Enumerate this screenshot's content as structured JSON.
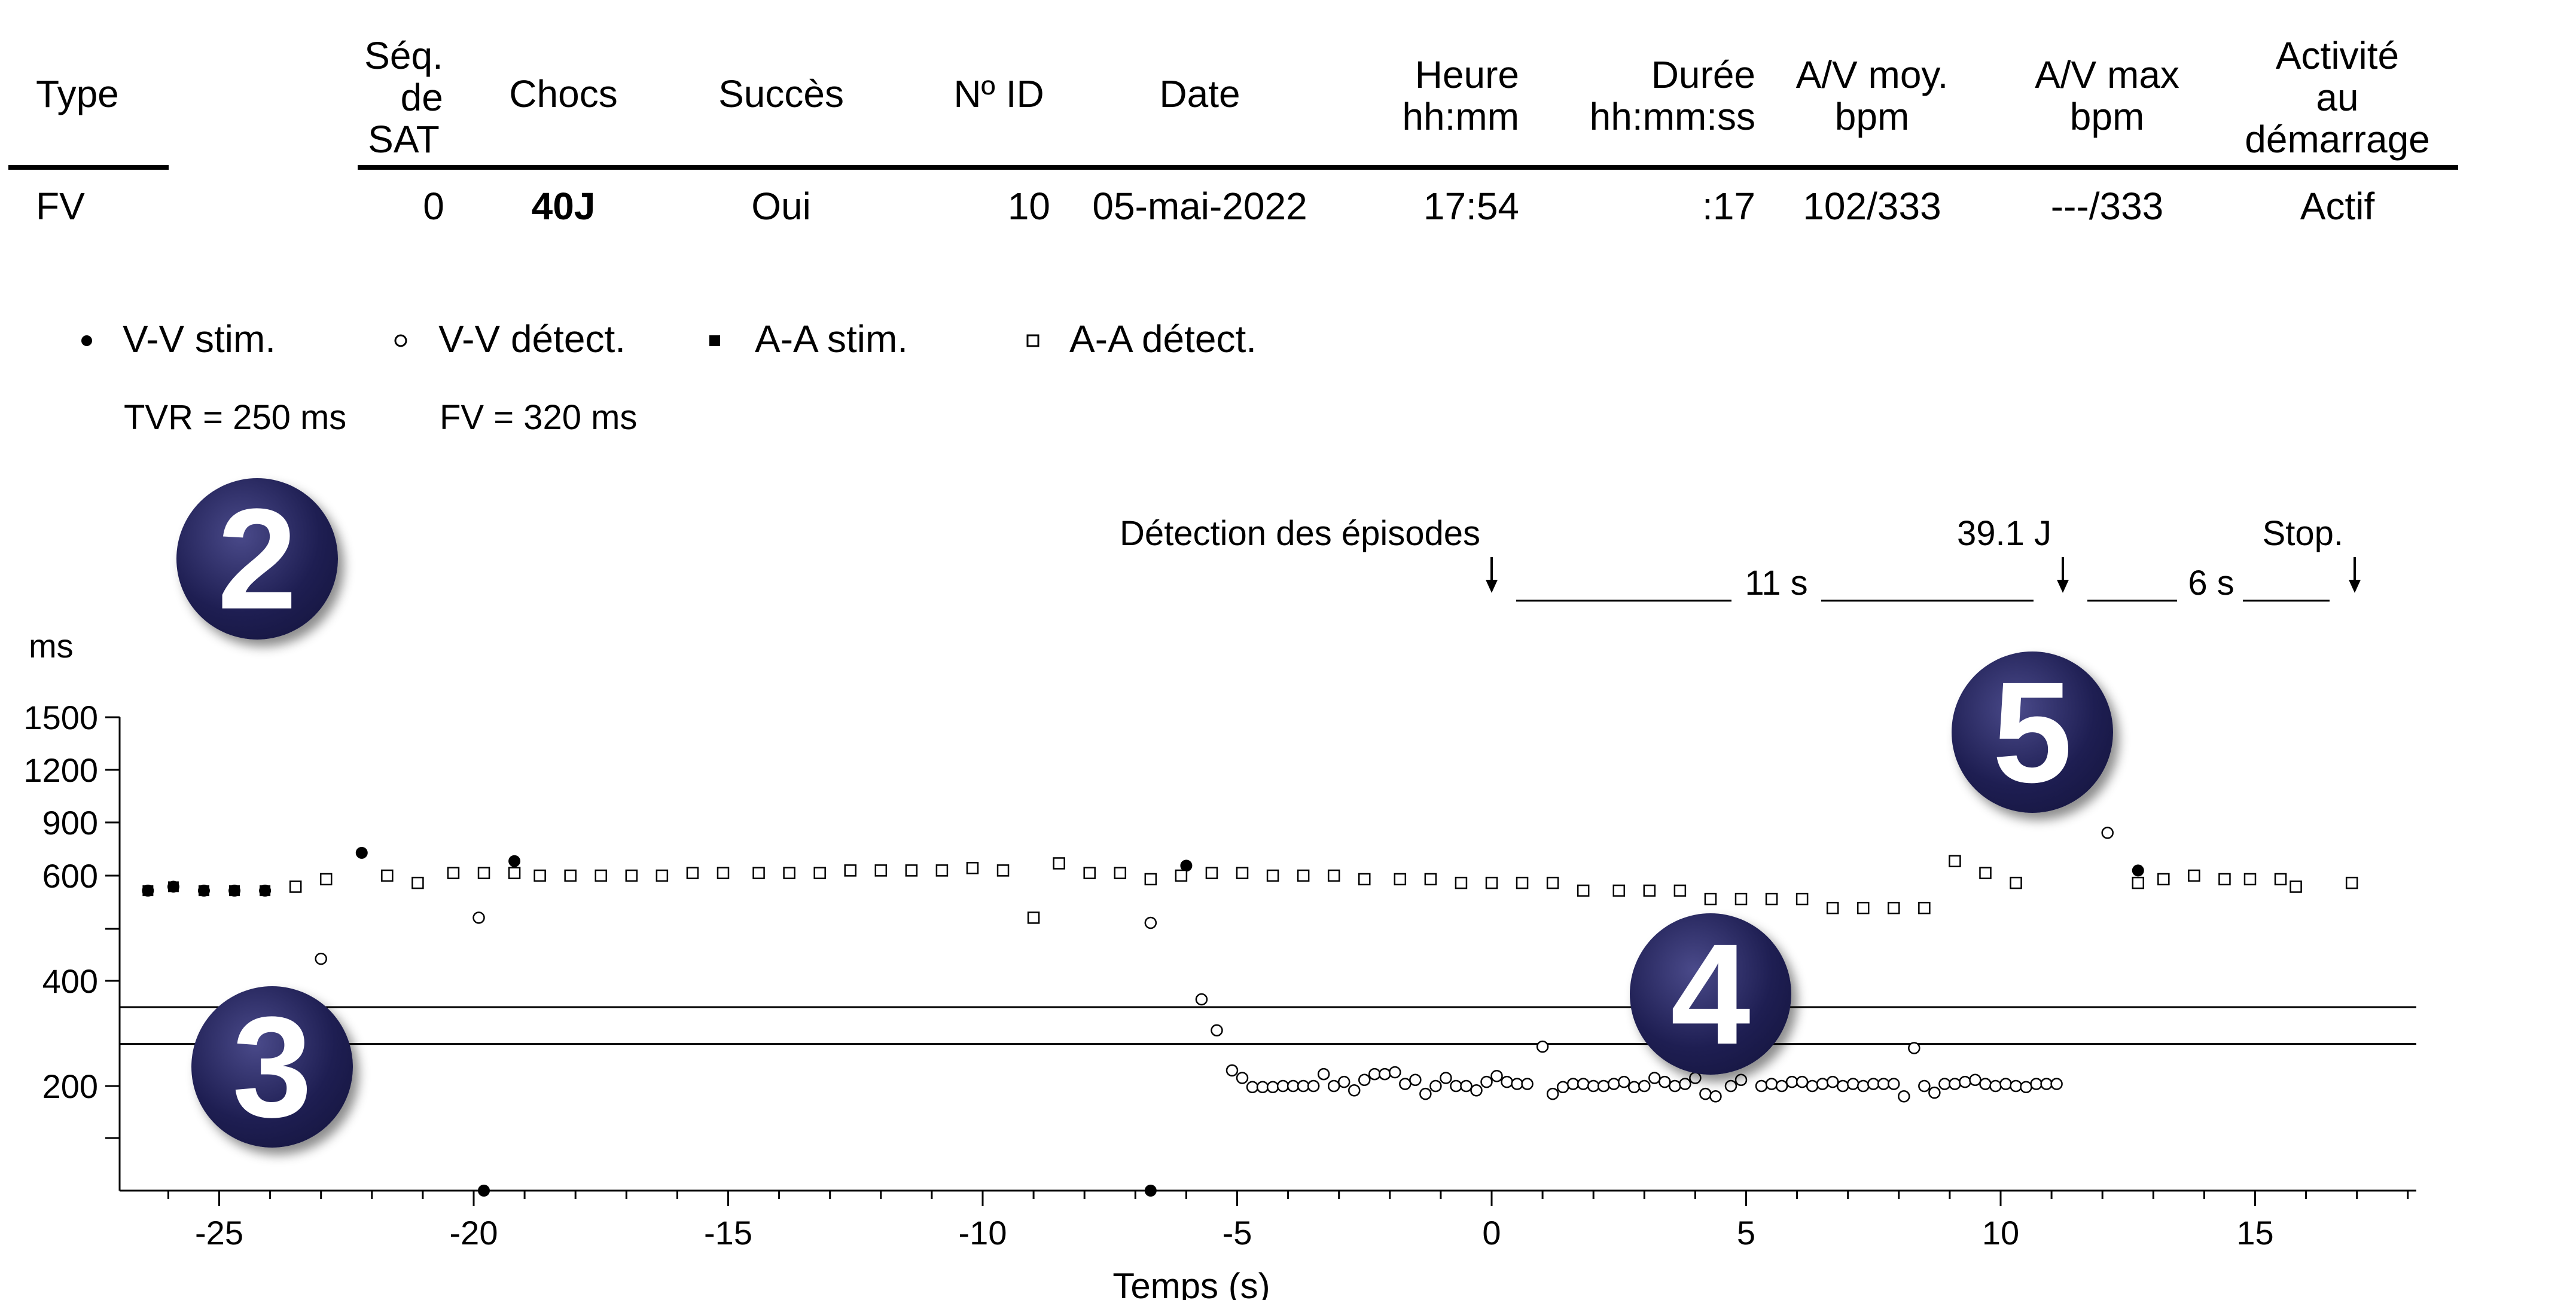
{
  "table": {
    "headers": {
      "type": "Type",
      "seq_line1": "Séq.",
      "seq_line2": "de",
      "seq_line3": "SAT",
      "chocs": "Chocs",
      "succes": "Succès",
      "id": "Nº ID",
      "date": "Date",
      "heure_line1": "Heure",
      "heure_line2": "hh:mm",
      "duree_line1": "Durée",
      "duree_line2": "hh:mm:ss",
      "av_moy_line1": "A/V moy.",
      "av_moy_line2": "bpm",
      "av_max_line1": "A/V max",
      "av_max_line2": "bpm",
      "activite_line1": "Activité",
      "activite_line2": "au",
      "activite_line3": "démarrage"
    },
    "row": {
      "type": "FV",
      "seq": "0",
      "chocs": "40J",
      "succes": "Oui",
      "id": "10",
      "date": "05-mai-2022",
      "heure": "17:54",
      "duree": ":17",
      "av_moy": "102/333",
      "av_max": "---/333",
      "activite": "Actif"
    }
  },
  "legend": {
    "vv_stim": "V-V stim.",
    "vv_detect": "V-V détect.",
    "aa_stim": "A-A stim.",
    "aa_detect": "A-A détect.",
    "tvr": "TVR = 250 ms",
    "fv": "FV = 320 ms"
  },
  "badges": {
    "b2": "2",
    "b3": "3",
    "b4": "4",
    "b5": "5"
  },
  "annotations": {
    "detection": "Détection des épisodes",
    "shock": "39.1 J",
    "stop": "Stop.",
    "interval1": "11 s",
    "interval2": "6 s"
  },
  "chart_data": {
    "type": "scatter",
    "xlabel": "Temps (s)",
    "ylabel": "ms",
    "xlim": [
      -27,
      18
    ],
    "x_ticks": [
      -25,
      -20,
      -15,
      -10,
      -5,
      0,
      5,
      10,
      15
    ],
    "y_ticks": [
      200,
      400,
      600,
      900,
      1200,
      1500
    ],
    "y_scale": "reciprocal",
    "thresholds": [
      {
        "name": "TVR",
        "value": 250
      },
      {
        "name": "FV",
        "value": 320
      }
    ],
    "series": [
      {
        "name": "V-V stim.",
        "marker": "filled-circle",
        "points": [
          [
            -26.4,
            560
          ],
          [
            -22.2,
            700
          ],
          [
            -19.2,
            660
          ],
          [
            -6.0,
            640
          ],
          [
            12.7,
            620
          ],
          [
            15.8,
            570
          ],
          [
            16.9,
            580
          ],
          [
            -19.8,
            100
          ],
          [
            -6.7,
            100
          ],
          [
            -25.9,
            570
          ],
          [
            -25.3,
            560
          ],
          [
            -24.7,
            560
          ],
          [
            -24.1,
            560
          ],
          [
            -23.5,
            570
          ],
          [
            -21.7,
            600
          ],
          [
            -21.1,
            580
          ],
          [
            -20.4,
            610
          ],
          [
            -18.7,
            600
          ],
          [
            -18.1,
            600
          ],
          [
            -17.5,
            600
          ],
          [
            -16.9,
            600
          ],
          [
            -16.3,
            600
          ],
          [
            -15.7,
            610
          ],
          [
            -15.1,
            610
          ],
          [
            -14.4,
            610
          ],
          [
            -13.8,
            610
          ],
          [
            -13.2,
            610
          ],
          [
            -12.6,
            620
          ],
          [
            -12.0,
            620
          ],
          [
            -11.4,
            620
          ],
          [
            -10.8,
            620
          ],
          [
            -10.2,
            630
          ],
          [
            -9.6,
            620
          ],
          [
            -9.0,
            500
          ],
          [
            -8.5,
            650
          ],
          [
            -7.9,
            610
          ],
          [
            -7.3,
            610
          ],
          [
            13.2,
            590
          ],
          [
            13.8,
            600
          ],
          [
            14.4,
            590
          ],
          [
            14.9,
            590
          ],
          [
            15.5,
            590
          ]
        ]
      },
      {
        "name": "V-V détect.",
        "marker": "open-circle",
        "points": [
          [
            -23.0,
            430
          ],
          [
            -19.9,
            500
          ],
          [
            -6.7,
            490
          ],
          [
            -5.7,
            340
          ],
          [
            -5.4,
            272
          ],
          [
            -5.1,
            216
          ],
          [
            -4.9,
            208
          ],
          [
            -4.7,
            198
          ],
          [
            -4.5,
            198
          ],
          [
            -4.3,
            198
          ],
          [
            -4.1,
            200
          ],
          [
            -3.9,
            200
          ],
          [
            -3.7,
            200
          ],
          [
            -3.5,
            200
          ],
          [
            -3.3,
            212
          ],
          [
            -3.1,
            200
          ],
          [
            -2.9,
            204
          ],
          [
            -2.7,
            192
          ],
          [
            -2.5,
            206
          ],
          [
            -2.3,
            212
          ],
          [
            -2.1,
            212
          ],
          [
            -1.9,
            214
          ],
          [
            -1.7,
            202
          ],
          [
            -1.5,
            206
          ],
          [
            -1.3,
            186
          ],
          [
            -1.1,
            200
          ],
          [
            -0.9,
            208
          ],
          [
            -0.7,
            200
          ],
          [
            -0.5,
            200
          ],
          [
            -0.3,
            192
          ],
          [
            -0.1,
            204
          ],
          [
            0.1,
            210
          ],
          [
            0.3,
            204
          ],
          [
            0.5,
            202
          ],
          [
            0.7,
            202
          ],
          [
            1.0,
            246
          ],
          [
            1.2,
            186
          ],
          [
            1.4,
            198
          ],
          [
            1.6,
            202
          ],
          [
            1.8,
            202
          ],
          [
            2.0,
            200
          ],
          [
            2.2,
            200
          ],
          [
            2.4,
            202
          ],
          [
            2.6,
            204
          ],
          [
            2.8,
            198
          ],
          [
            3.0,
            200
          ],
          [
            3.2,
            208
          ],
          [
            3.4,
            204
          ],
          [
            3.6,
            200
          ],
          [
            3.8,
            202
          ],
          [
            4.0,
            208
          ],
          [
            4.2,
            186
          ],
          [
            4.4,
            182
          ],
          [
            4.7,
            200
          ],
          [
            4.9,
            206
          ],
          [
            5.3,
            200
          ],
          [
            5.5,
            202
          ],
          [
            5.7,
            200
          ],
          [
            5.9,
            204
          ],
          [
            6.1,
            204
          ],
          [
            6.3,
            200
          ],
          [
            6.5,
            202
          ],
          [
            6.7,
            204
          ],
          [
            6.9,
            200
          ],
          [
            7.1,
            202
          ],
          [
            7.3,
            200
          ],
          [
            7.5,
            202
          ],
          [
            7.7,
            202
          ],
          [
            7.9,
            202
          ],
          [
            8.1,
            182
          ],
          [
            8.3,
            244
          ],
          [
            8.5,
            200
          ],
          [
            8.7,
            188
          ],
          [
            8.9,
            202
          ],
          [
            9.1,
            202
          ],
          [
            9.3,
            204
          ],
          [
            9.5,
            206
          ],
          [
            9.7,
            202
          ],
          [
            9.9,
            200
          ],
          [
            10.1,
            202
          ],
          [
            10.3,
            200
          ],
          [
            10.5,
            198
          ],
          [
            10.7,
            202
          ],
          [
            10.9,
            202
          ],
          [
            11.1,
            202
          ],
          [
            12.1,
            820
          ]
        ]
      },
      {
        "name": "A-A stim.",
        "marker": "filled-square",
        "points": [
          [
            -26.4,
            560
          ],
          [
            -25.9,
            570
          ],
          [
            -25.3,
            560
          ],
          [
            -24.7,
            560
          ],
          [
            -24.1,
            560
          ],
          [
            -20.4,
            610
          ],
          [
            -18.7,
            600
          ],
          [
            -16.9,
            600
          ],
          [
            -13.8,
            610
          ],
          [
            -12.6,
            620
          ],
          [
            -11.4,
            620
          ],
          [
            -10.2,
            630
          ],
          [
            -9.6,
            620
          ],
          [
            -9.0,
            500
          ],
          [
            -8.5,
            650
          ],
          [
            -7.9,
            610
          ],
          [
            -7.3,
            610
          ],
          [
            13.2,
            590
          ],
          [
            15.5,
            590
          ],
          [
            15.8,
            570
          ],
          [
            16.9,
            580
          ]
        ]
      },
      {
        "name": "A-A détect.",
        "marker": "open-square",
        "points": [
          [
            -23.5,
            570
          ],
          [
            -22.9,
            590
          ],
          [
            -21.7,
            600
          ],
          [
            -21.1,
            580
          ],
          [
            -20.4,
            610
          ],
          [
            -19.8,
            610
          ],
          [
            -19.2,
            610
          ],
          [
            -18.7,
            600
          ],
          [
            -18.1,
            600
          ],
          [
            -17.5,
            600
          ],
          [
            -16.9,
            600
          ],
          [
            -16.3,
            600
          ],
          [
            -15.7,
            610
          ],
          [
            -15.1,
            610
          ],
          [
            -14.4,
            610
          ],
          [
            -13.8,
            610
          ],
          [
            -13.2,
            610
          ],
          [
            -12.6,
            620
          ],
          [
            -12.0,
            620
          ],
          [
            -11.4,
            620
          ],
          [
            -10.8,
            620
          ],
          [
            -10.2,
            630
          ],
          [
            -9.6,
            620
          ],
          [
            -9.0,
            500
          ],
          [
            -8.5,
            650
          ],
          [
            -7.9,
            610
          ],
          [
            -7.3,
            610
          ],
          [
            -6.7,
            590
          ],
          [
            -6.1,
            600
          ],
          [
            -5.5,
            610
          ],
          [
            -4.9,
            610
          ],
          [
            -4.3,
            600
          ],
          [
            -3.7,
            600
          ],
          [
            -3.1,
            600
          ],
          [
            -2.5,
            590
          ],
          [
            -1.8,
            590
          ],
          [
            -1.2,
            590
          ],
          [
            -0.6,
            580
          ],
          [
            0.0,
            580
          ],
          [
            0.6,
            580
          ],
          [
            1.2,
            580
          ],
          [
            1.8,
            560
          ],
          [
            2.5,
            560
          ],
          [
            3.1,
            560
          ],
          [
            3.7,
            560
          ],
          [
            4.3,
            540
          ],
          [
            4.9,
            540
          ],
          [
            5.5,
            540
          ],
          [
            6.1,
            540
          ],
          [
            6.7,
            520
          ],
          [
            7.3,
            520
          ],
          [
            7.9,
            520
          ],
          [
            8.5,
            520
          ],
          [
            9.1,
            660
          ],
          [
            9.7,
            610
          ],
          [
            10.3,
            580
          ],
          [
            12.7,
            580
          ],
          [
            13.2,
            590
          ],
          [
            13.8,
            600
          ],
          [
            14.4,
            590
          ],
          [
            14.9,
            590
          ],
          [
            15.5,
            590
          ],
          [
            15.8,
            570
          ],
          [
            16.9,
            580
          ]
        ]
      }
    ]
  }
}
